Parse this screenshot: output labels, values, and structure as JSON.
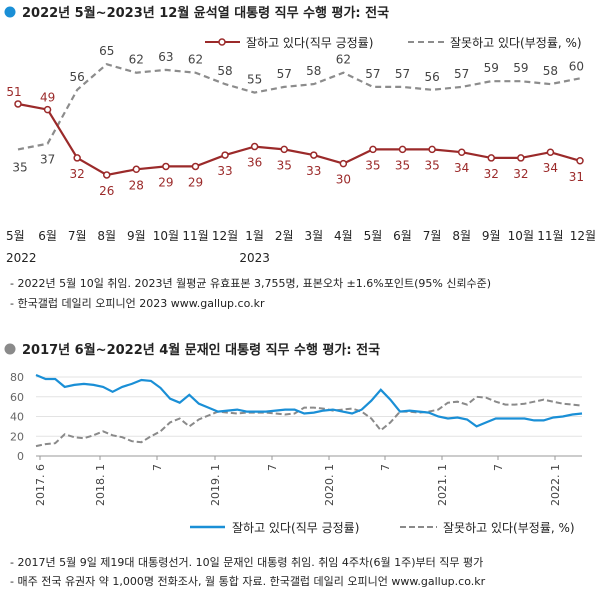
{
  "chart_data": [
    {
      "type": "line",
      "title": "2022년 5월~2023년 12월 윤석열 대통령 직무 수행 평가: 전국",
      "unit": "%",
      "categories": [
        "5월",
        "6월",
        "7월",
        "8월",
        "9월",
        "10월",
        "11월",
        "12월",
        "1월",
        "2월",
        "3월",
        "4월",
        "5월",
        "6월",
        "7월",
        "8월",
        "9월",
        "10월",
        "11월",
        "12월"
      ],
      "year_labels": [
        "2022",
        "2023"
      ],
      "ylim": [
        20,
        70
      ],
      "legend_position": "top",
      "series": [
        {
          "name": "잘하고 있다(직무 긍정률)",
          "style": "solid-marker",
          "color": "#9b2a2a",
          "values": [
            51,
            49,
            32,
            26,
            28,
            29,
            29,
            33,
            36,
            35,
            33,
            30,
            35,
            35,
            35,
            34,
            32,
            32,
            34,
            31
          ]
        },
        {
          "name": "잘못하고 있다(부정률, %)",
          "style": "dashed",
          "color": "#8c8c8c",
          "values": [
            35,
            37,
            56,
            65,
            62,
            63,
            62,
            58,
            55,
            57,
            58,
            62,
            57,
            57,
            56,
            57,
            59,
            59,
            58,
            60
          ]
        }
      ],
      "notes": [
        "- 2022년 5월 10일 취임. 2023년 월평균 유효표본 3,755명, 표본오차 ±1.6%포인트(95% 신뢰수준)",
        "- 한국갤럽 데일리 오피니언 2023 www.gallup.co.kr"
      ]
    },
    {
      "type": "line",
      "title": "2017년 6월~2022년 4월 문재인 대통령 직무 수행 평가: 전국",
      "unit": "%",
      "ylim": [
        0,
        80
      ],
      "yticks": [
        0,
        20,
        40,
        60,
        80
      ],
      "x_ticks": [
        "2017. 6",
        "2018. 1",
        "7",
        "2019. 1",
        "7",
        "2020. 1",
        "7",
        "2021. 1",
        "7",
        "2022. 1"
      ],
      "legend_position": "bottom",
      "series": [
        {
          "name": "잘하고 있다(직무 긍정률)",
          "style": "solid",
          "color": "#1a8fd6",
          "values": [
            82,
            78,
            78,
            70,
            72,
            73,
            72,
            70,
            65,
            70,
            73,
            77,
            76,
            69,
            58,
            54,
            62,
            53,
            49,
            45,
            46,
            47,
            45,
            45,
            45,
            46,
            47,
            47,
            43,
            44,
            46,
            47,
            45,
            43,
            47,
            56,
            67,
            57,
            45,
            46,
            45,
            44,
            40,
            38,
            39,
            37,
            30,
            34,
            38,
            38,
            38,
            38,
            36,
            36,
            39,
            40,
            42,
            43
          ]
        },
        {
          "name": "잘못하고 있다(부정률, %)",
          "style": "dashed",
          "color": "#8a8a8a",
          "values": [
            10,
            12,
            13,
            22,
            19,
            18,
            21,
            25,
            21,
            19,
            15,
            14,
            20,
            25,
            34,
            38,
            30,
            37,
            41,
            45,
            44,
            43,
            44,
            44,
            44,
            43,
            42,
            43,
            49,
            49,
            48,
            46,
            47,
            48,
            45,
            38,
            26,
            34,
            45,
            45,
            44,
            45,
            47,
            54,
            55,
            52,
            60,
            59,
            55,
            52,
            52,
            53,
            55,
            57,
            55,
            53,
            52,
            51
          ]
        }
      ],
      "notes": [
        "- 2017년 5월 9일 제19대 대통령선거. 10일 문재인 대통령 취임. 취임 4주차(6월 1주)부터 직무 평가",
        "- 매주 전국 유권자 약 1,000명 전화조사, 월 통합 자료. 한국갤럽 데일리 오피니언 www.gallup.co.kr"
      ]
    }
  ]
}
